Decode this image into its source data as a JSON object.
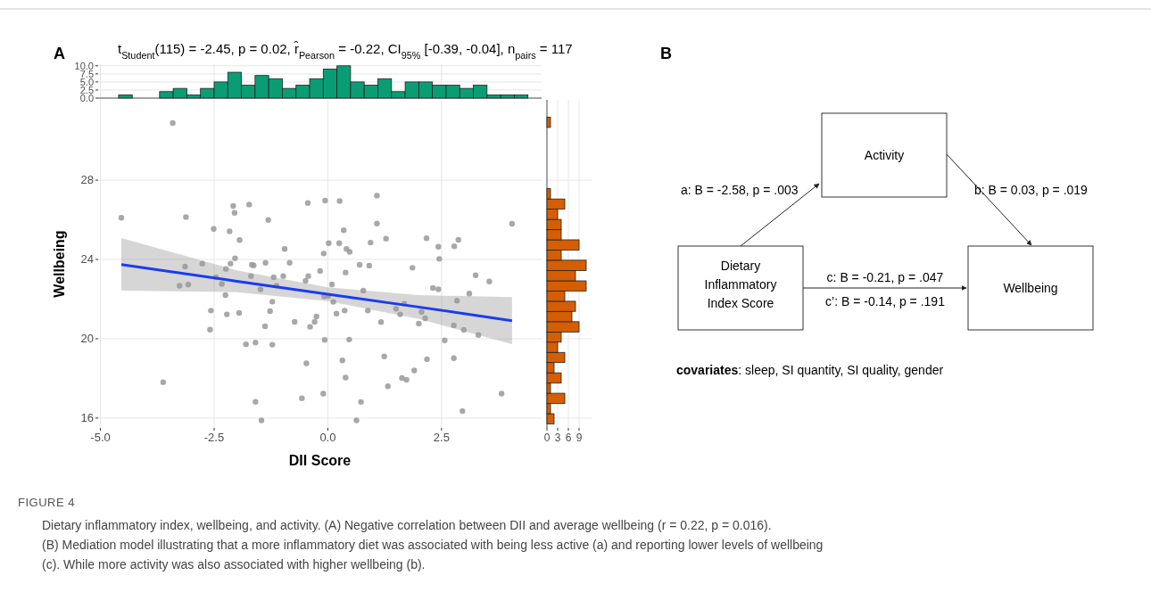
{
  "chart_data": [
    {
      "type": "histogram",
      "title": "t$_{Student}$(115) = -2.45, p = 0.02, r̂$_{Pearson}$ = -0.22, CI$_{95%}$ [-0.39, -0.04], n$_{pairs}$ = 117",
      "color": "#0a9d74",
      "bins": [
        -4.6,
        -4.3,
        -4.0,
        -3.7,
        -3.4,
        -3.1,
        -2.8,
        -2.5,
        -2.2,
        -1.9,
        -1.6,
        -1.3,
        -1.0,
        -0.7,
        -0.4,
        -0.1,
        0.2,
        0.5,
        0.8,
        1.1,
        1.4,
        1.7,
        2.0,
        2.3,
        2.6,
        2.9,
        3.2,
        3.5,
        3.8,
        4.1,
        4.4
      ],
      "values": [
        1,
        0,
        0,
        2,
        3,
        1,
        3,
        5,
        8,
        4,
        7,
        6,
        3,
        4,
        6,
        9,
        10,
        5,
        4,
        6,
        2,
        5,
        5,
        4,
        4,
        3,
        4,
        1,
        1,
        1
      ],
      "xlim": [
        -5.05,
        4.7
      ],
      "xticks": [
        {
          "value": -5,
          "label": null
        },
        {
          "value": -2.5,
          "label": null
        },
        {
          "value": 0,
          "label": null
        },
        {
          "value": 2.5,
          "label": null
        }
      ],
      "ylim": [
        0,
        10.5
      ],
      "yticks": [
        {
          "value": 0,
          "label": "0.0"
        },
        {
          "value": 2.5,
          "label": "2.5"
        },
        {
          "value": 5,
          "label": "5.0"
        },
        {
          "value": 7.5,
          "label": "7.5"
        },
        {
          "value": 10,
          "label": "10.0"
        }
      ],
      "grid": true,
      "tick_labels": "y"
    },
    {
      "type": "scatter",
      "xlabel": "DII Score",
      "ylabel": "Wellbeing",
      "grid": true,
      "annotations": [
        "A",
        "FIGURE 4",
        "Dietary inflammatory index, wellbeing, and activity. (A) Negative correlation between DII and average wellbeing (r = 0.22, p = 0.016).",
        "(B) Mediation model illustrating that a more inflammatory diet was associated with being less active (a) and reporting lower levels of wellbeing (c). While more activity was also associated with higher wellbeing (b)."
      ],
      "xlim": [
        -5.05,
        4.7
      ],
      "xticks": [
        {
          "value": -5,
          "label": "-5.0"
        },
        {
          "value": -2.5,
          "label": "-2.5"
        },
        {
          "value": 0,
          "label": "0.0"
        },
        {
          "value": 2.5,
          "label": "2.5"
        }
      ],
      "ylim": [
        15.5,
        32.05
      ],
      "yticks": [
        16,
        20,
        24,
        28
      ],
      "series": [
        {
          "type": "scatter",
          "marker": "circle",
          "color": "#999999",
          "x": [
            -3.41,
            -4.54,
            -3.12,
            -2.51,
            -2.16,
            -2.08,
            -2.05,
            -1.73,
            -1.94,
            -1.31,
            -0.95,
            -0.44,
            -0.06,
            0.26,
            0.35,
            0.02,
            0.25,
            0.41,
            0.48,
            0.94,
            1.08,
            1.08,
            1.28,
            2.17,
            2.43,
            2.78,
            2.87,
            4.05,
            -3.14,
            -2.76,
            -2.14,
            -2.04,
            -1.67,
            -1.63,
            -1.37,
            -0.84,
            -2.24,
            -3.26,
            -3.07,
            -2.46,
            -2.33,
            -2.25,
            -1.69,
            -1.48,
            -1.19,
            -1.13,
            -0.98,
            -0.49,
            -0.43,
            -0.17,
            -0.09,
            0.09,
            -0.08,
            0.01,
            0.39,
            0.7,
            0.91,
            0.78,
            1.86,
            2.45,
            2.31,
            2.43,
            3.25,
            3.55,
            3.11,
            2.84,
            -2.57,
            -2.22,
            -1.95,
            -2.59,
            -1.22,
            -1.27,
            -1.38,
            -0.73,
            -0.39,
            -0.29,
            -0.25,
            0.12,
            0.19,
            0.37,
            0.88,
            1.17,
            1.5,
            1.59,
            1.68,
            2.06,
            2.0,
            2.14,
            2.77,
            2.99,
            3.31,
            -1.8,
            -1.59,
            -1.22,
            -0.07,
            0.47,
            2.57,
            1.24,
            2.18,
            2.77,
            -0.47,
            0.32,
            1.9,
            1.63,
            1.73,
            0.39,
            1.32,
            -3.62,
            -0.57,
            -0.1,
            3.82,
            -1.59,
            0.73,
            2.96,
            -1.46,
            0.63
          ],
          "values": [
            30.88,
            26.1,
            26.14,
            25.54,
            25.42,
            26.7,
            26.35,
            26.77,
            24.98,
            25.99,
            24.53,
            26.85,
            26.97,
            26.95,
            25.47,
            24.82,
            24.82,
            24.53,
            24.38,
            24.85,
            27.22,
            25.81,
            25.05,
            25.07,
            24.64,
            24.66,
            24.99,
            25.8,
            23.64,
            23.79,
            23.79,
            24.06,
            23.73,
            23.7,
            23.83,
            23.83,
            23.52,
            22.67,
            22.73,
            23.1,
            22.76,
            22.2,
            23.16,
            22.49,
            23.1,
            22.68,
            23.16,
            22.92,
            23.16,
            23.42,
            24.3,
            22.74,
            22.13,
            22.16,
            23.34,
            23.73,
            23.69,
            22.43,
            23.58,
            24.03,
            22.56,
            22.49,
            23.2,
            22.89,
            22.28,
            21.92,
            21.42,
            21.23,
            21.3,
            20.46,
            21.87,
            21.39,
            20.63,
            20.85,
            20.6,
            20.85,
            21.12,
            21.86,
            21.27,
            21.42,
            21.42,
            20.84,
            21.51,
            21.23,
            21.77,
            21.36,
            20.76,
            21.03,
            20.67,
            20.45,
            20.19,
            19.72,
            19.81,
            19.7,
            19.94,
            19.96,
            19.92,
            19.11,
            18.97,
            19.02,
            18.76,
            18.91,
            18.4,
            18.02,
            17.93,
            18.04,
            17.6,
            17.81,
            17.0,
            17.23,
            17.23,
            16.82,
            16.81,
            16.35,
            15.88,
            15.88
          ]
        },
        {
          "type": "line",
          "color": "#1a3cf0",
          "x": [
            -4.54,
            -2,
            0,
            2,
            4.05
          ],
          "values": [
            23.74,
            22.9,
            22.25,
            21.6,
            20.91
          ],
          "lower": [
            22.43,
            22.35,
            21.9,
            21.0,
            19.73
          ],
          "upper": [
            25.08,
            23.45,
            22.6,
            22.2,
            22.1
          ]
        }
      ]
    },
    {
      "type": "histogram",
      "orientation": "horizontal",
      "color": "#d55e00",
      "bins": [
        15.7,
        16.22,
        16.73,
        17.25,
        17.76,
        18.28,
        18.8,
        19.31,
        19.83,
        20.34,
        20.86,
        21.38,
        21.89,
        22.41,
        22.92,
        23.44,
        23.96,
        24.47,
        24.99,
        25.5,
        26.02,
        26.54,
        27.05,
        27.57,
        28.08,
        28.6,
        29.12,
        29.63,
        30.15,
        30.66,
        31.18
      ],
      "values": [
        2,
        1,
        5,
        1,
        4,
        2,
        5,
        3,
        4,
        9,
        7,
        8,
        5,
        11,
        8,
        11,
        4,
        9,
        4,
        4,
        3,
        5,
        1,
        0,
        0,
        0,
        0,
        0,
        0,
        1
      ],
      "xlim": [
        -0.25,
        12.5
      ],
      "xticks": [
        0,
        3,
        6,
        9
      ],
      "ylim": [
        15.5,
        32.05
      ],
      "yticks": [
        16,
        20,
        24,
        28
      ],
      "grid": true,
      "tick_labels": "x"
    },
    {
      "type": "other",
      "annotations": [
        "B",
        "Activity",
        "Dietary\nInflammatory\nIndex Score",
        "Wellbeing",
        "a: B = -2.58, p = .003",
        "b: B = 0.03, p = .019",
        "c: B = -0.21, p = .047",
        "c’: B = -0.14, p = .191",
        "covariates: sleep, SI quantity, SI quality, gender"
      ]
    }
  ]
}
